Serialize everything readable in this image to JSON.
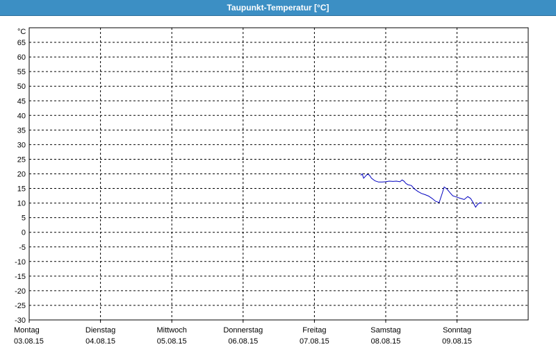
{
  "window": {
    "title": "Taupunkt-Temperatur [°C]"
  },
  "colors": {
    "title_bg": "#3c8fc4",
    "series_line": "#0000c0",
    "grid": "#000000"
  },
  "chart_data": {
    "type": "line",
    "title": "Taupunkt-Temperatur [°C]",
    "unit_label": "°C",
    "ylim": [
      -30,
      65
    ],
    "y_ticks": [
      65,
      60,
      55,
      50,
      45,
      40,
      35,
      30,
      25,
      20,
      15,
      10,
      5,
      0,
      -5,
      -10,
      -15,
      -20,
      -25,
      -30
    ],
    "grid": true,
    "x_categories": [
      {
        "day": "Montag",
        "date": "03.08.15"
      },
      {
        "day": "Dienstag",
        "date": "04.08.15"
      },
      {
        "day": "Mittwoch",
        "date": "05.08.15"
      },
      {
        "day": "Donnerstag",
        "date": "06.08.15"
      },
      {
        "day": "Freitag",
        "date": "07.08.15"
      },
      {
        "day": "Samstag",
        "date": "08.08.15"
      },
      {
        "day": "Sonntag",
        "date": "09.08.15"
      }
    ],
    "series": [
      {
        "points": [
          [
            4.65,
            19.5
          ],
          [
            4.67,
            20.0
          ],
          [
            4.69,
            18.5
          ],
          [
            4.72,
            19.3
          ],
          [
            4.74,
            19.8
          ],
          [
            4.77,
            19.6
          ],
          [
            4.8,
            18.5
          ],
          [
            4.85,
            17.6
          ],
          [
            4.9,
            17.2
          ],
          [
            4.95,
            17.2
          ],
          [
            5.0,
            17.3
          ],
          [
            5.05,
            17.5
          ],
          [
            5.1,
            17.4
          ],
          [
            5.15,
            17.5
          ],
          [
            5.2,
            17.3
          ],
          [
            5.23,
            17.9
          ],
          [
            5.26,
            17.4
          ],
          [
            5.28,
            16.8
          ],
          [
            5.31,
            16.3
          ],
          [
            5.36,
            16.0
          ],
          [
            5.4,
            14.9
          ],
          [
            5.45,
            14.0
          ],
          [
            5.5,
            13.3
          ],
          [
            5.55,
            12.9
          ],
          [
            5.6,
            12.4
          ],
          [
            5.65,
            11.6
          ],
          [
            5.7,
            10.6
          ],
          [
            5.75,
            10.2
          ],
          [
            5.79,
            13.2
          ],
          [
            5.82,
            15.5
          ],
          [
            5.86,
            14.8
          ],
          [
            5.9,
            13.6
          ],
          [
            5.94,
            12.5
          ],
          [
            6.0,
            12.0
          ],
          [
            6.05,
            11.6
          ],
          [
            6.1,
            11.2
          ],
          [
            6.15,
            12.2
          ],
          [
            6.19,
            11.6
          ],
          [
            6.23,
            10.0
          ],
          [
            6.26,
            8.6
          ],
          [
            6.29,
            9.6
          ],
          [
            6.32,
            10.1
          ],
          [
            6.35,
            10.0
          ]
        ]
      }
    ]
  }
}
